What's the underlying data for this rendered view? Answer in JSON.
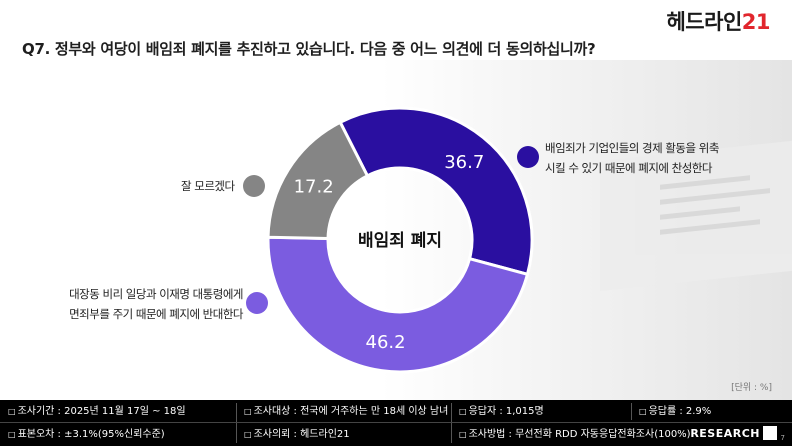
{
  "logo": {
    "text": "헤드라인",
    "num": "21"
  },
  "question": "Q7. 정부와 여당이 배임죄 폐지를 추진하고 있습니다. 다음 중 어느 의견에 더 동의하십니까?",
  "chart_data": {
    "type": "pie",
    "donut": true,
    "center_label": "배임죄 폐지",
    "slices": [
      {
        "label_lines": [
          "배임죄가 기업인들의 경제 활동을 위축",
          "시킬 수 있기 때문에 폐지에 찬성한다"
        ],
        "value": 36.7,
        "value_label": "36.7",
        "color": "#2a0fa0"
      },
      {
        "label_lines": [
          "대장동 비리 일당과 이재명 대통령에게",
          "면죄부를 주기 때문에 폐지에 반대한다"
        ],
        "value": 46.2,
        "value_label": "46.2",
        "color": "#7b5ce0"
      },
      {
        "label_lines": [
          "잘 모르겠다"
        ],
        "value": 17.2,
        "value_label": "17.2",
        "color": "#858585"
      }
    ]
  },
  "unit": "[단위 : %]",
  "footer": {
    "row1": [
      "조사기간 : 2025년 11월 17일 ~ 18일",
      "조사대상 : 전국에 거주하는 만 18세 이상 남녀",
      "응답자 : 1,015명",
      "응답률 : 2.9%"
    ],
    "row2": [
      "표본오차 : ±3.1%(95%신뢰수준)",
      "조사의뢰 : 헤드라인21",
      "조사방법 : 무선전화 RDD 자동응답전화조사(100%)"
    ],
    "logo": "RESEARCH",
    "page": "7"
  }
}
